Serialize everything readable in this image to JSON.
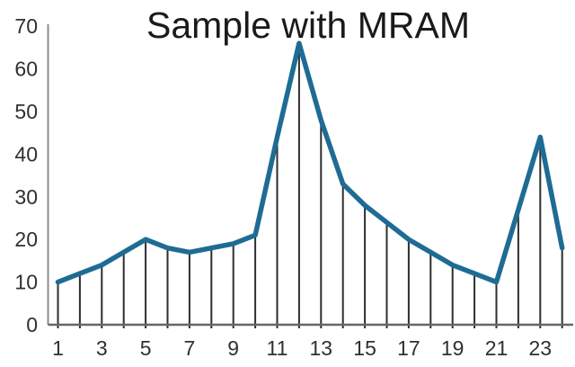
{
  "chart_data": {
    "type": "line",
    "title": "Sample with MRAM",
    "x": [
      1,
      2,
      3,
      4,
      5,
      6,
      7,
      8,
      9,
      10,
      11,
      12,
      13,
      14,
      15,
      16,
      17,
      18,
      19,
      20,
      21,
      22,
      23,
      24
    ],
    "series": [
      {
        "name": "Sample with MRAM",
        "values": [
          10,
          12,
          14,
          17,
          20,
          18,
          17,
          18,
          19,
          21,
          44,
          66,
          48,
          33,
          28,
          24,
          20,
          17,
          14,
          12,
          10,
          27,
          44,
          18
        ]
      }
    ],
    "xlabel": "",
    "ylabel": "",
    "xticks": [
      1,
      3,
      5,
      7,
      9,
      11,
      13,
      15,
      17,
      19,
      21,
      23
    ],
    "yticks": [
      0,
      10,
      20,
      30,
      40,
      50,
      60,
      70
    ],
    "ylim": [
      0,
      70
    ],
    "xlim": [
      1,
      24
    ],
    "grid": false,
    "legend_position": "none",
    "annotations": "thin vertical drop lines from each data point down through the x-axis",
    "colors": {
      "line": "#1e6c94",
      "stem": "#2e2e2e",
      "y_axis_line": "#8c8c8c",
      "x_axis_line": "#666666",
      "tick_label": "#303030",
      "title": "#1a1a1a",
      "background": "#ffffff"
    }
  }
}
